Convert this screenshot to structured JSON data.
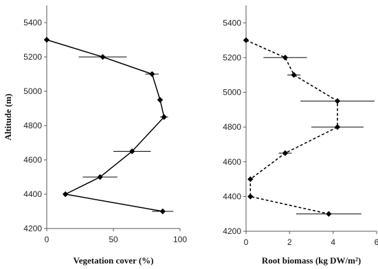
{
  "chart_data": [
    {
      "type": "line",
      "title": "",
      "xlabel": "Vegetation cover (%)",
      "ylabel": "Altitude (m)",
      "xlim": [
        0,
        100
      ],
      "ylim": [
        4200,
        5500
      ],
      "x_ticks": [
        "0",
        "50",
        "100"
      ],
      "y_ticks": [
        "4200",
        "4400",
        "4600",
        "4800",
        "5000",
        "5200",
        "5400"
      ],
      "line_style": "solid",
      "grid": false,
      "series": [
        {
          "points": [
            {
              "y": 5300,
              "x": 0,
              "err": 0
            },
            {
              "y": 5200,
              "x": 42,
              "err": 18
            },
            {
              "y": 5100,
              "x": 79,
              "err": 5
            },
            {
              "y": 4950,
              "x": 85,
              "err": 0
            },
            {
              "y": 4850,
              "x": 88,
              "err": 3
            },
            {
              "y": 4650,
              "x": 64,
              "err": 14
            },
            {
              "y": 4500,
              "x": 40,
              "err": 13
            },
            {
              "y": 4400,
              "x": 14,
              "err": 0
            },
            {
              "y": 4300,
              "x": 87,
              "err": 8
            }
          ]
        }
      ]
    },
    {
      "type": "line",
      "title": "",
      "xlabel": "Root biomass (kg DW/m²)",
      "ylabel": "",
      "xlim": [
        0,
        6
      ],
      "ylim": [
        4200,
        5500
      ],
      "x_ticks": [
        "0",
        "2",
        "4",
        "6"
      ],
      "y_ticks": [
        "4200",
        "4400",
        "4600",
        "4800",
        "5000",
        "5200",
        "5400"
      ],
      "line_style": "dashed",
      "grid": false,
      "series": [
        {
          "points": [
            {
              "y": 5300,
              "x": 0,
              "err": 0
            },
            {
              "y": 5200,
              "x": 1.8,
              "err": 1.0
            },
            {
              "y": 5100,
              "x": 2.2,
              "err": 0.3
            },
            {
              "y": 4950,
              "x": 4.2,
              "err": 1.7
            },
            {
              "y": 4800,
              "x": 4.2,
              "err": 1.2
            },
            {
              "y": 4650,
              "x": 1.8,
              "err": 0.3
            },
            {
              "y": 4500,
              "x": 0.2,
              "err": 0
            },
            {
              "y": 4400,
              "x": 0.2,
              "err": 0
            },
            {
              "y": 4300,
              "x": 3.8,
              "err": 1.5
            }
          ]
        }
      ]
    }
  ]
}
